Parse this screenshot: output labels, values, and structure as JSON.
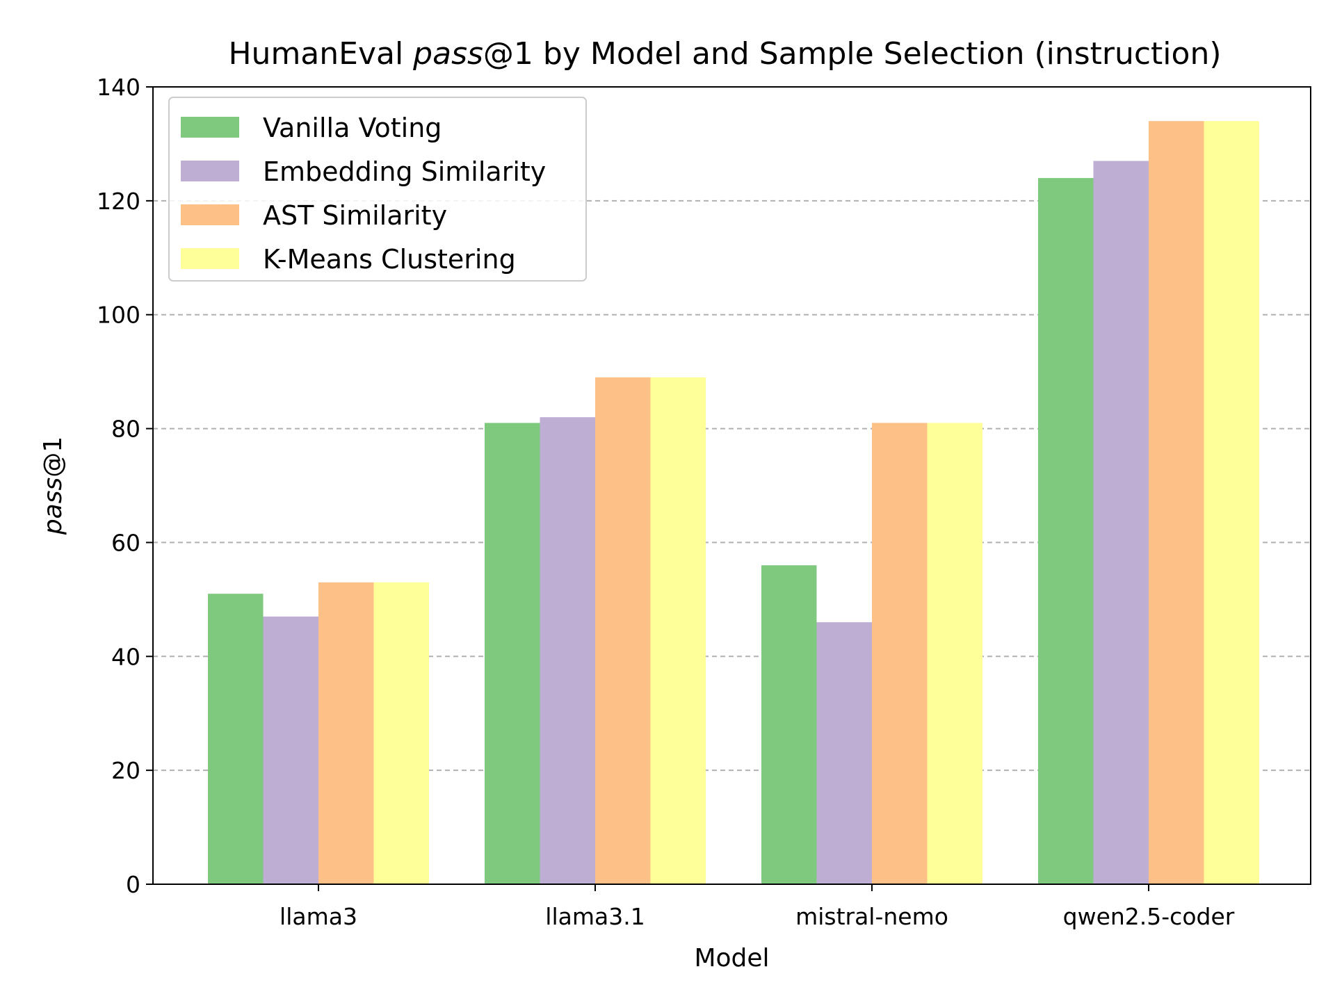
{
  "chart_data": {
    "type": "bar",
    "title_parts": [
      {
        "text": "HumanEval ",
        "italic": false
      },
      {
        "text": "pass",
        "italic": true
      },
      {
        "text": "@1 by Model and Sample Selection (instruction)",
        "italic": false
      }
    ],
    "xlabel": "Model",
    "ylabel_parts": [
      {
        "text": "pass",
        "italic": true
      },
      {
        "text": "@1",
        "italic": false
      }
    ],
    "categories": [
      "llama3",
      "llama3.1",
      "mistral-nemo",
      "qwen2.5-coder"
    ],
    "series": [
      {
        "name": "Vanilla Voting",
        "color": "#7fc97f",
        "values": [
          51,
          81,
          56,
          124
        ]
      },
      {
        "name": "Embedding Similarity",
        "color": "#beaed4",
        "values": [
          47,
          82,
          46,
          127
        ]
      },
      {
        "name": "AST Similarity",
        "color": "#fdc086",
        "values": [
          53,
          89,
          81,
          134
        ]
      },
      {
        "name": "K-Means Clustering",
        "color": "#ffff99",
        "values": [
          53,
          89,
          81,
          134
        ]
      }
    ],
    "ylim": [
      0,
      140
    ],
    "yticks": [
      0,
      20,
      40,
      60,
      80,
      100,
      120,
      140
    ],
    "grid": "y-dashed",
    "legend_position": "top-left"
  }
}
